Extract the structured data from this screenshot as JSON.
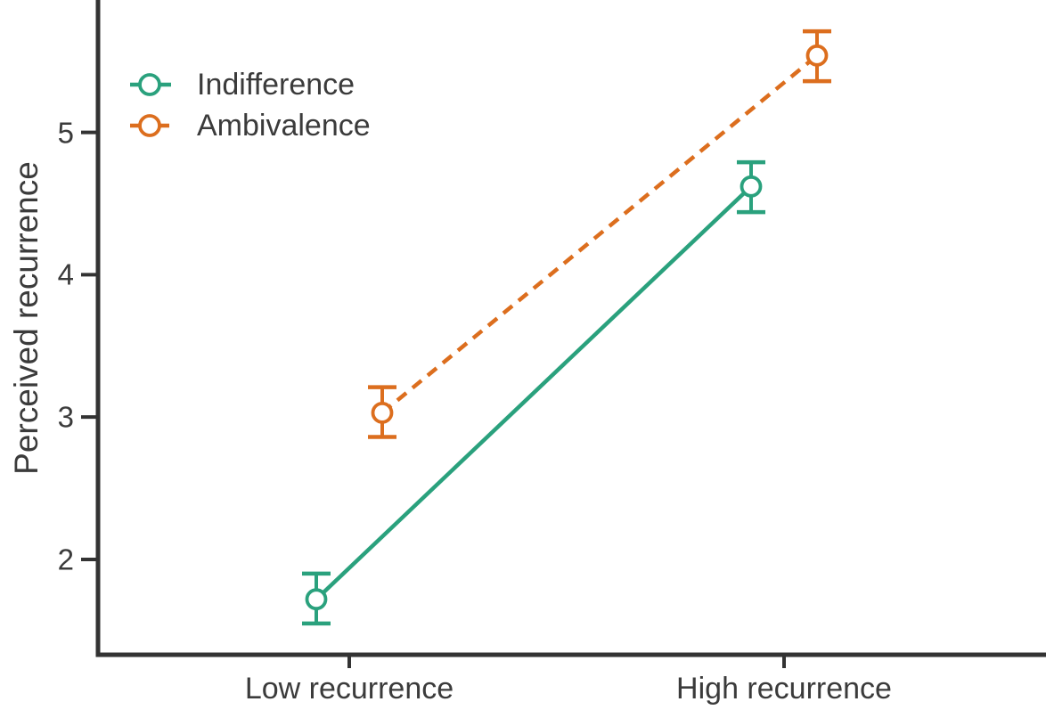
{
  "chart_data": {
    "type": "line",
    "title": "",
    "xlabel": "",
    "ylabel": "Perceived recurrence",
    "categories": [
      "Low recurrence",
      "High recurrence"
    ],
    "series": [
      {
        "name": "Indifference",
        "color": "#2aa17d",
        "linestyle": "solid",
        "marker": "open-circle",
        "values": [
          1.72,
          4.62
        ],
        "ci_lower": [
          1.55,
          4.44
        ],
        "ci_upper": [
          1.9,
          4.79
        ]
      },
      {
        "name": "Ambivalence",
        "color": "#dc6e1e",
        "linestyle": "dashed",
        "marker": "open-circle",
        "values": [
          3.03,
          5.54
        ],
        "ci_lower": [
          2.86,
          5.36
        ],
        "ci_upper": [
          3.21,
          5.71
        ]
      }
    ],
    "yticks": [
      2,
      3,
      4,
      5
    ],
    "ylim": [
      1.33,
      5.93
    ],
    "error_bars": true,
    "grid": false,
    "legend_position": "top-left",
    "axis_color": "#333333",
    "text_color": "#3b3b3b"
  }
}
